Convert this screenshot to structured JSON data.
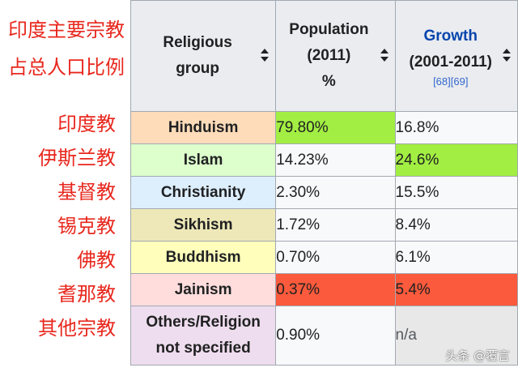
{
  "sidebar": {
    "title_lines": [
      "印度主要宗教",
      "占总人口比例"
    ],
    "religions_zh": [
      "印度教",
      "伊斯兰教",
      "基督教",
      "锡克教",
      "佛教",
      "耆那教",
      "其他宗教"
    ]
  },
  "table": {
    "headers": {
      "religion_lines": [
        "Religious",
        "group"
      ],
      "population_lines": [
        "Population",
        "(2011)",
        "%"
      ],
      "growth_title": "Growth",
      "growth_period": "(2001-2011)",
      "growth_refs": "[68][69]"
    },
    "rows": [
      {
        "religion": "Hinduism",
        "population": "79.80%",
        "growth": "16.8%",
        "religion_bg": "#fedcba",
        "population_bg": "#a2ee42",
        "growth_bg": "#f8f9fa"
      },
      {
        "religion": "Islam",
        "population": "14.23%",
        "growth": "24.6%",
        "religion_bg": "#ddffcc",
        "population_bg": "#f8f9fa",
        "growth_bg": "#a2ee42"
      },
      {
        "religion": "Christianity",
        "population": "2.30%",
        "growth": "15.5%",
        "religion_bg": "#ddeefc",
        "population_bg": "#f8f9fa",
        "growth_bg": "#f8f9fa"
      },
      {
        "religion": "Sikhism",
        "population": "1.72%",
        "growth": "8.4%",
        "religion_bg": "#eee8b8",
        "population_bg": "#f8f9fa",
        "growth_bg": "#f8f9fa"
      },
      {
        "religion": "Buddhism",
        "population": "0.70%",
        "growth": "6.1%",
        "religion_bg": "#ffffbb",
        "population_bg": "#f8f9fa",
        "growth_bg": "#f8f9fa"
      },
      {
        "religion": "Jainism",
        "population": "0.37%",
        "growth": "5.4%",
        "religion_bg": "#ffdddd",
        "population_bg": "#fb5a3c",
        "growth_bg": "#fb5a3c"
      },
      {
        "religion_lines": [
          "Others/Religion",
          "not specified"
        ],
        "population": "0.90%",
        "growth": "n/a",
        "religion_bg": "#eeddee",
        "population_bg": "#f8f9fa",
        "growth_bg": "#e8e8e8"
      }
    ]
  },
  "watermark": "头条 @覆言"
}
